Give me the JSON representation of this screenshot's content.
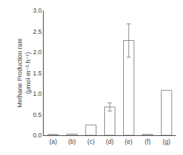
{
  "chart_data": {
    "type": "bar",
    "categories": [
      "(a)",
      "(b)",
      "(c)",
      "(d)",
      "(e)",
      "(f)",
      "(g)"
    ],
    "values": [
      0.022,
      0.03,
      0.25,
      0.68,
      2.28,
      0.022,
      1.08
    ],
    "errors": [
      0.0,
      0.0,
      0.0,
      0.1,
      0.4,
      0.0,
      0.0
    ],
    "color": "#ffffff",
    "ylabel": "Methane Production rate\n(μmol·m⁻²·h⁻¹)",
    "ylim": [
      0.0,
      3.0
    ],
    "yticks": [
      {
        "value": 0.0,
        "label": "0.0"
      },
      0.5,
      {
        "value": 1.0,
        "label": "1.0"
      },
      1.5,
      {
        "value": 2.0,
        "label": "2.0"
      },
      2.5,
      {
        "value": 3.0,
        "label": "3.0"
      }
    ],
    "grid": false
  }
}
